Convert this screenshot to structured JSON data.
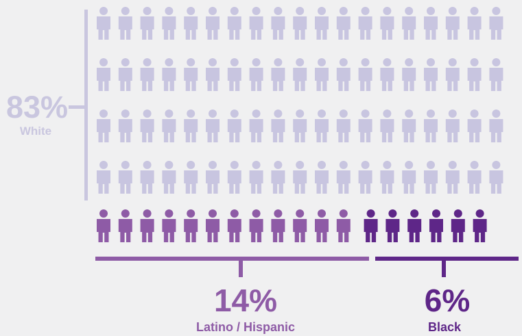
{
  "colors": {
    "background": "#f0f0f1",
    "white_group": "#c8c5e0",
    "white_bracket": "#c9c6df",
    "latino_group": "#8e5ba6",
    "black_group": "#5e2688"
  },
  "icon": "person-icon",
  "chart_data": {
    "type": "pictograph",
    "groups": [
      {
        "name": "White",
        "percent_label": "83%",
        "value": 83,
        "icon_rows": 4,
        "icons_per_row": 19
      },
      {
        "name": "Latino / Hispanic",
        "percent_label": "14%",
        "value": 14,
        "icon_rows": 1,
        "icon_count": 12
      },
      {
        "name": "Black",
        "percent_label": "6%",
        "value": 6,
        "icon_rows": 1,
        "icon_count": 6
      }
    ]
  }
}
